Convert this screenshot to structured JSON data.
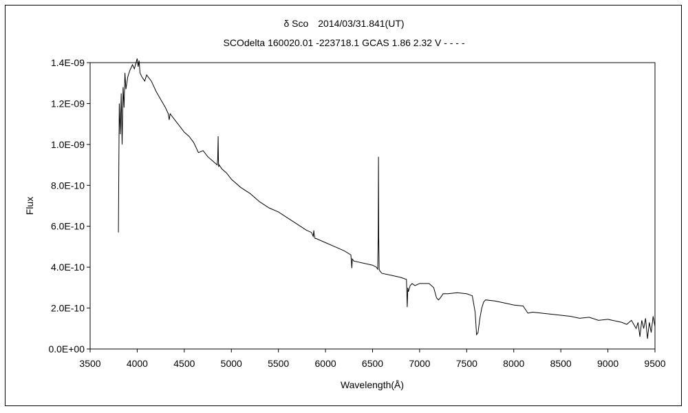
{
  "chart_data": {
    "type": "line",
    "title": "δ Sco　2014/03/31.841(UT)",
    "subtitle": "SCOdelta 160020.01 -223718.1 GCAS 1.86 2.32 V - - - -",
    "xlabel": "Wavelength(Å)",
    "ylabel": "Flux",
    "xlim": [
      3500,
      9500
    ],
    "ylim": [
      0,
      1.4e-09
    ],
    "x_ticks": [
      "3500",
      "4000",
      "4500",
      "5000",
      "5500",
      "6000",
      "6500",
      "7000",
      "7500",
      "8000",
      "8500",
      "9000",
      "9500"
    ],
    "y_ticks": [
      "0.0E+00",
      "2.0E-10",
      "4.0E-10",
      "6.0E-10",
      "8.0E-10",
      "1.0E-09",
      "1.2E-09",
      "1.4E-09"
    ],
    "grid": false,
    "legend": "none",
    "series": [
      {
        "color": "#000000",
        "x": [
          3800,
          3805,
          3810,
          3820,
          3830,
          3840,
          3850,
          3860,
          3870,
          3880,
          3900,
          3920,
          3950,
          3970,
          4000,
          4010,
          4020,
          4030,
          4050,
          4080,
          4100,
          4150,
          4200,
          4250,
          4300,
          4330,
          4340,
          4350,
          4400,
          4450,
          4500,
          4550,
          4600,
          4650,
          4700,
          4750,
          4800,
          4850,
          4855,
          4860,
          4862,
          4865,
          4870,
          4900,
          4950,
          5000,
          5100,
          5200,
          5300,
          5400,
          5500,
          5600,
          5700,
          5800,
          5850,
          5870,
          5876,
          5880,
          5890,
          5900,
          6000,
          6100,
          6200,
          6270,
          6280,
          6285,
          6300,
          6400,
          6500,
          6540,
          6555,
          6560,
          6563,
          6566,
          6570,
          6580,
          6600,
          6700,
          6800,
          6860,
          6868,
          6875,
          6880,
          6900,
          6920,
          6950,
          7000,
          7100,
          7150,
          7180,
          7200,
          7220,
          7250,
          7300,
          7400,
          7500,
          7560,
          7590,
          7605,
          7620,
          7640,
          7660,
          7680,
          7700,
          7800,
          7900,
          8000,
          8100,
          8150,
          8200,
          8300,
          8400,
          8500,
          8600,
          8700,
          8800,
          8900,
          9000,
          9100,
          9150,
          9200,
          9250,
          9300,
          9320,
          9340,
          9360,
          9380,
          9400,
          9420,
          9440,
          9460,
          9480,
          9500
        ],
        "y": [
          5.7e-10,
          9e-10,
          1.2e-09,
          1.05e-09,
          1.25e-09,
          1e-09,
          1.28e-09,
          1.18e-09,
          1.35e-09,
          1.27e-09,
          1.33e-09,
          1.36e-09,
          1.39e-09,
          1.37e-09,
          1.42e-09,
          1.38e-09,
          1.41e-09,
          1.35e-09,
          1.33e-09,
          1.31e-09,
          1.34e-09,
          1.31e-09,
          1.26e-09,
          1.22e-09,
          1.18e-09,
          1.15e-09,
          1.12e-09,
          1.15e-09,
          1.12e-09,
          1.09e-09,
          1.06e-09,
          1.04e-09,
          1.01e-09,
          9.6e-10,
          9.7e-10,
          9.4e-10,
          9.2e-10,
          9e-10,
          9.3e-10,
          1.04e-09,
          9.4e-10,
          8.9e-10,
          9e-10,
          8.8e-10,
          8.6e-10,
          8.3e-10,
          7.9e-10,
          7.6e-10,
          7.2e-10,
          6.9e-10,
          6.7e-10,
          6.4e-10,
          6.1e-10,
          5.8e-10,
          5.7e-10,
          5.5e-10,
          5.8e-10,
          5.6e-10,
          5.4e-10,
          5.4e-10,
          5.2e-10,
          5e-10,
          4.8e-10,
          4.6e-10,
          3.95e-10,
          4.4e-10,
          4.3e-10,
          4.2e-10,
          4.1e-10,
          4e-10,
          3.9e-10,
          5.5e-10,
          9.4e-10,
          5.5e-10,
          3.9e-10,
          3.8e-10,
          3.7e-10,
          3.6e-10,
          3.5e-10,
          3.4e-10,
          2.05e-10,
          3e-10,
          2.8e-10,
          3.1e-10,
          3.2e-10,
          3.1e-10,
          3.2e-10,
          3.2e-10,
          3e-10,
          2.5e-10,
          2.4e-10,
          2.5e-10,
          2.7e-10,
          2.7e-10,
          2.75e-10,
          2.7e-10,
          2.6e-10,
          1.8e-10,
          7e-11,
          8e-11,
          1.5e-10,
          2e-10,
          2.3e-10,
          2.4e-10,
          2.35e-10,
          2.25e-10,
          2.15e-10,
          2.1e-10,
          1.75e-10,
          1.8e-10,
          1.75e-10,
          1.7e-10,
          1.65e-10,
          1.6e-10,
          1.5e-10,
          1.55e-10,
          1.4e-10,
          1.45e-10,
          1.35e-10,
          1.3e-10,
          1.2e-10,
          1.4e-10,
          1e-10,
          1.3e-10,
          6e-11,
          1.4e-10,
          1e-10,
          1.5e-10,
          5e-11,
          1.3e-10,
          8e-11,
          1.6e-10,
          1.1e-10
        ]
      }
    ]
  }
}
